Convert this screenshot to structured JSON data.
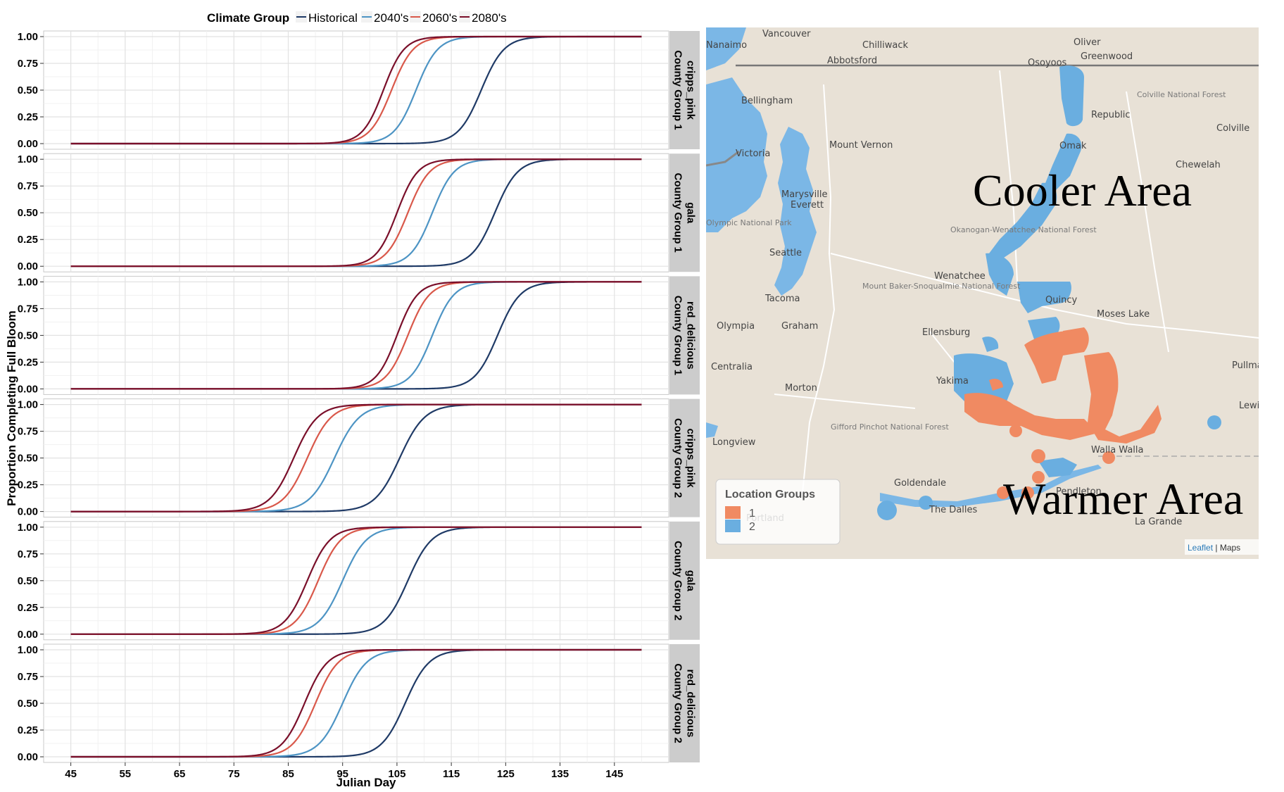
{
  "chart_data": {
    "type": "line",
    "title": "",
    "xlabel": "Julian Day",
    "ylabel": "Proportion Completing Full Bloom",
    "xlim": [
      40,
      155
    ],
    "ylim": [
      0,
      1
    ],
    "x_ticks": [
      45,
      55,
      65,
      75,
      85,
      95,
      105,
      115,
      125,
      135,
      145
    ],
    "y_ticks": [
      "0.00",
      "0.25",
      "0.50",
      "0.75",
      "1.00"
    ],
    "grid": true,
    "x_range": [
      45,
      150
    ],
    "legend": {
      "title": "Climate Group",
      "placement": "top",
      "entries": [
        "Historical",
        "2040's",
        "2060's",
        "2080's"
      ]
    },
    "series_colors": {
      "Historical": "#1f3a66",
      "2040's": "#4d94c4",
      "2060's": "#d9584a",
      "2080's": "#7a0f2a"
    },
    "panels": [
      {
        "strip": [
          "cripps_pink",
          "County Group 1"
        ],
        "series": [
          {
            "name": "Historical",
            "midpoint": 120.5,
            "spread": 2.1
          },
          {
            "name": "2040's",
            "midpoint": 108.5,
            "spread": 2.0
          },
          {
            "name": "2060's",
            "midpoint": 104.0,
            "spread": 2.0
          },
          {
            "name": "2080's",
            "midpoint": 102.5,
            "spread": 1.9
          }
        ]
      },
      {
        "strip": [
          "gala",
          "County Group 1"
        ],
        "series": [
          {
            "name": "Historical",
            "midpoint": 123.0,
            "spread": 2.1
          },
          {
            "name": "2040's",
            "midpoint": 111.5,
            "spread": 2.0
          },
          {
            "name": "2060's",
            "midpoint": 107.0,
            "spread": 2.0
          },
          {
            "name": "2080's",
            "midpoint": 105.0,
            "spread": 1.9
          }
        ]
      },
      {
        "strip": [
          "red_delicious",
          "County Group 1"
        ],
        "series": [
          {
            "name": "Historical",
            "midpoint": 123.5,
            "spread": 2.1
          },
          {
            "name": "2040's",
            "midpoint": 111.5,
            "spread": 2.0
          },
          {
            "name": "2060's",
            "midpoint": 107.0,
            "spread": 2.0
          },
          {
            "name": "2080's",
            "midpoint": 105.0,
            "spread": 1.9
          }
        ]
      },
      {
        "strip": [
          "cripps_pink",
          "County Group 2"
        ],
        "series": [
          {
            "name": "Historical",
            "midpoint": 105.5,
            "spread": 2.3
          },
          {
            "name": "2040's",
            "midpoint": 93.5,
            "spread": 2.3
          },
          {
            "name": "2060's",
            "midpoint": 88.5,
            "spread": 2.2
          },
          {
            "name": "2080's",
            "midpoint": 86.0,
            "spread": 2.2
          }
        ]
      },
      {
        "strip": [
          "gala",
          "County Group 2"
        ],
        "series": [
          {
            "name": "Historical",
            "midpoint": 107.0,
            "spread": 2.2
          },
          {
            "name": "2040's",
            "midpoint": 95.0,
            "spread": 2.2
          },
          {
            "name": "2060's",
            "midpoint": 90.5,
            "spread": 2.1
          },
          {
            "name": "2080's",
            "midpoint": 88.5,
            "spread": 2.1
          }
        ]
      },
      {
        "strip": [
          "red_delicious",
          "County Group 2"
        ],
        "series": [
          {
            "name": "Historical",
            "midpoint": 106.5,
            "spread": 2.2
          },
          {
            "name": "2040's",
            "midpoint": 95.0,
            "spread": 2.2
          },
          {
            "name": "2060's",
            "midpoint": 90.0,
            "spread": 2.1
          },
          {
            "name": "2080's",
            "midpoint": 88.0,
            "spread": 2.1
          }
        ]
      }
    ]
  },
  "map": {
    "annotations": {
      "cooler": "Cooler Area",
      "warmer": "Warmer Area"
    },
    "legend": {
      "title": "Location Groups",
      "items": [
        {
          "label": "1",
          "color": "#f08a62"
        },
        {
          "label": "2",
          "color": "#6aaee0"
        }
      ]
    },
    "attribution": {
      "link": "Leaflet",
      "rest": " | Maps"
    },
    "colors": {
      "land": "#e8e1d6",
      "water": "#7bb7e6",
      "road": "#ffffff"
    },
    "cities": [
      "Vancouver",
      "Chilliwack",
      "Abbotsford",
      "Nanaimo",
      "Bellingham",
      "Victoria",
      "Mount Vernon",
      "Marysville",
      "Everett",
      "Seattle",
      "Tacoma",
      "Olympia",
      "Graham",
      "Centralia",
      "Morton",
      "Longview",
      "Wenatchee",
      "Ellensburg",
      "Yakima",
      "Quincy",
      "Moses Lake",
      "Omak",
      "Osoyoos",
      "Oliver",
      "Greenwood",
      "Republic",
      "Colville",
      "Chewelah",
      "Pullman",
      "Lewiston",
      "Walla Walla",
      "Pendleton",
      "Goldendale",
      "The Dalles",
      "Portland",
      "La Grande"
    ],
    "place_areas": [
      "Colville National Forest",
      "Okanogan-Wenatchee National Forest",
      "Mount Baker-Snoqualmie National Forest",
      "Gifford Pinchot National Forest",
      "Olympic National Park"
    ]
  }
}
